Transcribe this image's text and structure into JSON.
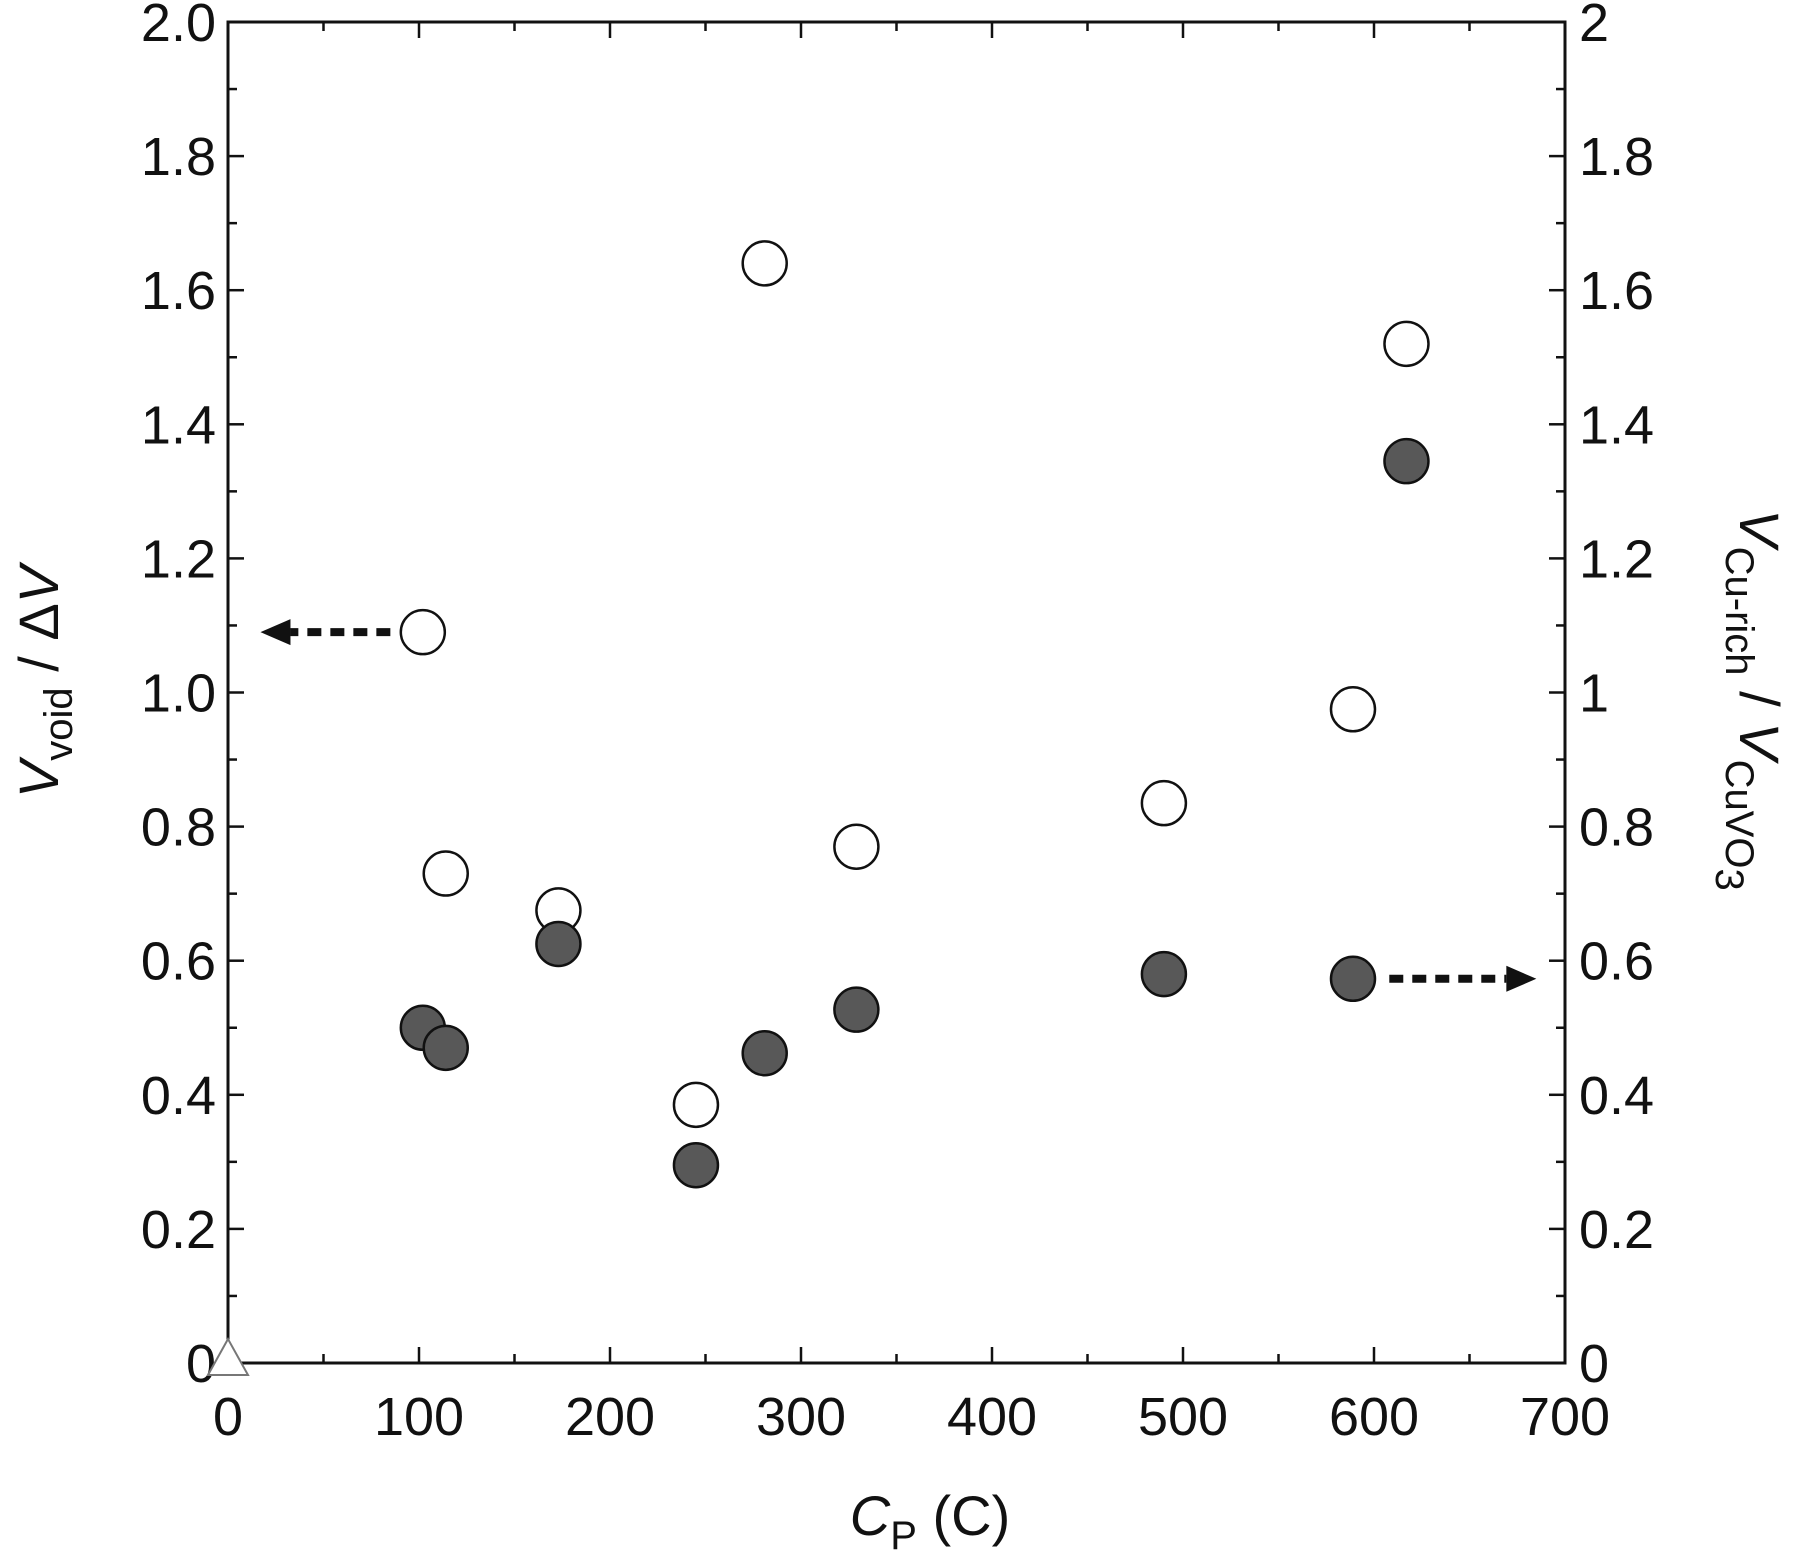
{
  "chart_data": {
    "type": "scatter",
    "x_axis": {
      "label_italic": "C",
      "label_sub": "P",
      "label_rest": " (C)",
      "range": [
        0,
        700
      ],
      "ticks": [
        0,
        100,
        200,
        300,
        400,
        500,
        600,
        700
      ],
      "tick_labels": [
        "0",
        "100",
        "200",
        "300",
        "400",
        "500",
        "600",
        "700"
      ],
      "minor_step": 50
    },
    "y_left_axis": {
      "label_italic_1": "V",
      "label_sub_1": "void",
      "label_mid": " / Δ",
      "label_italic_2": "V",
      "range": [
        0,
        2.0
      ],
      "ticks": [
        0,
        0.2,
        0.4,
        0.6,
        0.8,
        1.0,
        1.2,
        1.4,
        1.6,
        1.8,
        2.0
      ],
      "tick_labels": [
        "0",
        "0.2",
        "0.4",
        "0.6",
        "0.8",
        "1.0",
        "1.2",
        "1.4",
        "1.6",
        "1.8",
        "2.0"
      ],
      "minor_step": 0.1
    },
    "y_right_axis": {
      "label_italic_1": "V",
      "label_sub_1": "Cu-rich",
      "label_mid": " / ",
      "label_italic_2": "V",
      "label_sub_2": "CuVO",
      "label_sub_2_sub": "3",
      "range": [
        0,
        2
      ],
      "ticks": [
        0,
        0.2,
        0.4,
        0.6,
        0.8,
        1,
        1.2,
        1.4,
        1.6,
        1.8,
        2
      ],
      "tick_labels": [
        "0",
        "0.2",
        "0.4",
        "0.6",
        "0.8",
        "1",
        "1.2",
        "1.4",
        "1.6",
        "1.8",
        "2"
      ],
      "minor_step": 0.1
    },
    "series": [
      {
        "axis": "left",
        "marker": "open-circle",
        "color": "#ffffff",
        "stroke": "#111111",
        "points": [
          {
            "x": 102,
            "y": 1.09
          },
          {
            "x": 114,
            "y": 0.73
          },
          {
            "x": 173,
            "y": 0.675
          },
          {
            "x": 245,
            "y": 0.385
          },
          {
            "x": 281,
            "y": 1.64
          },
          {
            "x": 329,
            "y": 0.77
          },
          {
            "x": 490,
            "y": 0.835
          },
          {
            "x": 589,
            "y": 0.975
          },
          {
            "x": 617,
            "y": 1.52
          }
        ]
      },
      {
        "axis": "right",
        "marker": "filled-circle",
        "color": "#585858",
        "stroke": "#111111",
        "points": [
          {
            "x": 102,
            "y": 0.5
          },
          {
            "x": 114,
            "y": 0.47
          },
          {
            "x": 173,
            "y": 0.625
          },
          {
            "x": 245,
            "y": 0.295
          },
          {
            "x": 281,
            "y": 0.462
          },
          {
            "x": 329,
            "y": 0.527
          },
          {
            "x": 490,
            "y": 0.58
          },
          {
            "x": 589,
            "y": 0.573
          },
          {
            "x": 617,
            "y": 1.345
          }
        ]
      },
      {
        "axis": "left",
        "marker": "open-triangle",
        "color": "#ffffff",
        "stroke": "#777777",
        "points": [
          {
            "x": 0,
            "y": 0
          }
        ]
      }
    ],
    "annotations": [
      {
        "type": "dashed-arrow",
        "direction": "left",
        "points_to": "left-axis",
        "from": {
          "x": 85,
          "y": 1.09
        },
        "to": {
          "x": 17,
          "y": 1.09
        }
      },
      {
        "type": "dashed-arrow",
        "direction": "right",
        "points_to": "right-axis",
        "from": {
          "x": 608,
          "y": 0.573
        },
        "to": {
          "x": 685,
          "y": 0.573
        }
      }
    ],
    "grid": false,
    "legend": "none"
  }
}
